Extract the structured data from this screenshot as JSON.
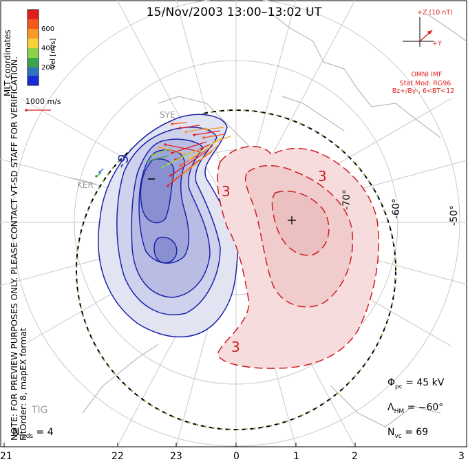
{
  "title": "15/Nov/2003 13:00–13:02 UT",
  "note_line1": "NOTE: FOR PREVIEW PURPOSES ONLY. PLEASE CONTACT VT-SD STAFF FOR VERIFICATION.",
  "note_line2": "FitOrder: 8, mapEX format",
  "mlt_coords": "MLT coordinates",
  "colorbar": {
    "label": "Vel [m/s]",
    "ticks": [
      "600",
      "400",
      "200"
    ],
    "colors": [
      "#e21e1e",
      "#f25a20",
      "#f79a2a",
      "#f7d23a",
      "#8cd24a",
      "#3aa44a",
      "#2e72c0",
      "#1a2ad8"
    ]
  },
  "reference_vector": "1000 m/s",
  "imf": {
    "bz_label": "+Z (10 nT)",
    "by_label": "+Y",
    "source": "OMNI IMF",
    "model": "Stat Mod: RG96",
    "condition": "Bz+/By-, 6<BT<12"
  },
  "stats": {
    "phi_symbol": "Φ",
    "phi_sub": "pc",
    "phi_value": " = 45 kV",
    "lambda_symbol": "Λ",
    "lambda_sub": "HM",
    "lambda_value": " = −60°",
    "nvc_symbol": "N",
    "nvc_sub": "vc",
    "nvc_value": " = 69",
    "nrads_symbol": "N",
    "nrads_sub": "rads",
    "nrads_value": " = 4"
  },
  "mlt_ticks": [
    "21",
    "22",
    "23",
    "0",
    "1",
    "2",
    "3"
  ],
  "lat_labels": [
    "-50°",
    "-60°",
    "-70°"
  ],
  "contour_labels": [
    "-9",
    "3",
    "3",
    "3"
  ],
  "potential_marks": [
    "−",
    "+"
  ],
  "stations": [
    "SYE",
    "KER",
    "TIG"
  ],
  "colors": {
    "negative_cell": "#1a22a8",
    "positive_cell": "#cc1e1e",
    "hm_boundary": "#000000",
    "hm_boundary_dash": "#8cd24a",
    "grid": "#c8c8c8",
    "coastline": "#b8b8b8"
  }
}
